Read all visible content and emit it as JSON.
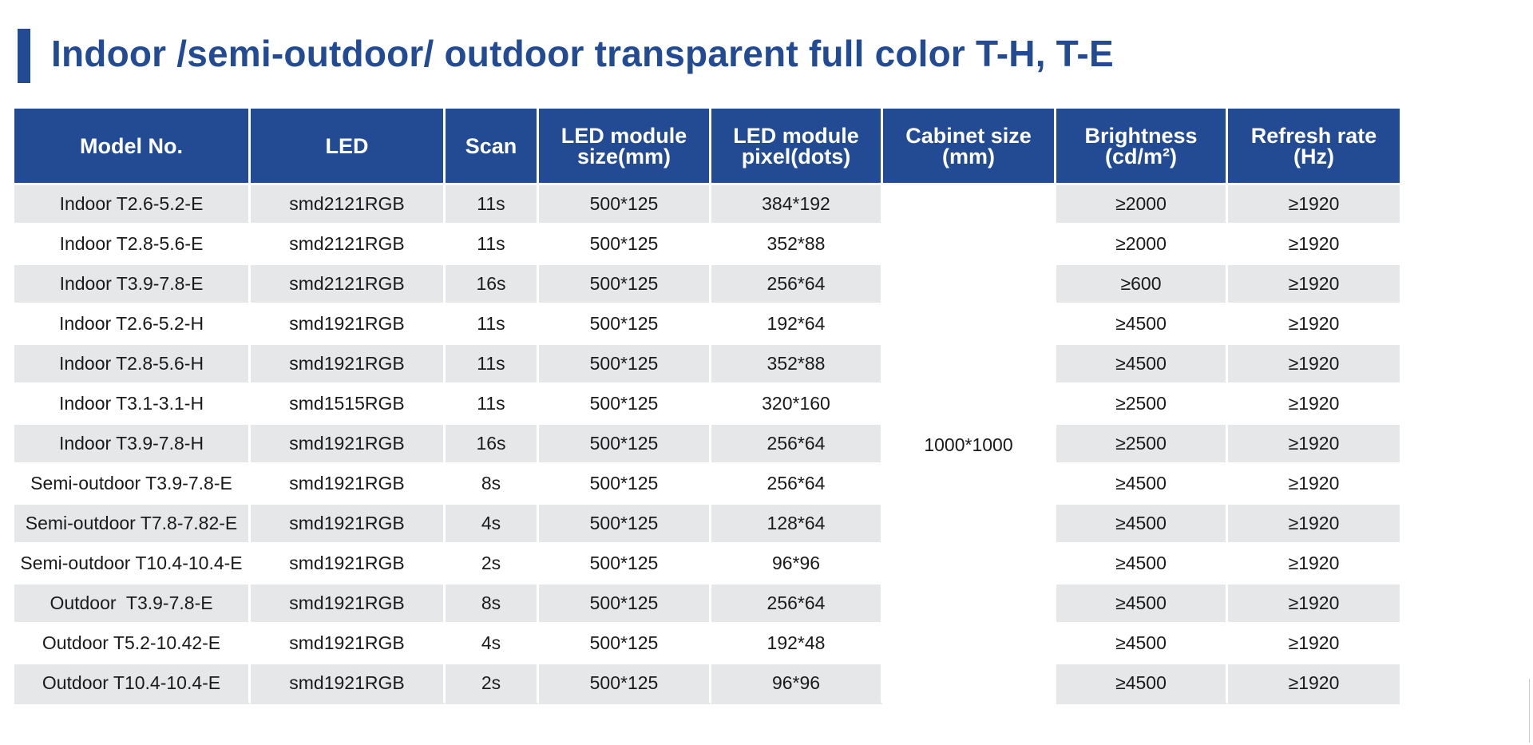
{
  "title": "Indoor /semi-outdoor/ outdoor transparent full color T-H, T-E",
  "table": {
    "headers": [
      [
        "Model No.",
        ""
      ],
      [
        "LED",
        ""
      ],
      [
        "Scan",
        ""
      ],
      [
        "LED module",
        "size(mm)"
      ],
      [
        "LED module",
        "pixel(dots)"
      ],
      [
        "Cabinet size",
        "(mm)"
      ],
      [
        "Brightness",
        "(cd/m²)"
      ],
      [
        "Refresh rate",
        "(Hz)"
      ]
    ],
    "cabinet_size": "1000*1000",
    "rows": [
      {
        "model": "Indoor T2.6-5.2-E",
        "led": "smd2121RGB",
        "scan": "11s",
        "module_size": "500*125",
        "module_pixel": "384*192",
        "brightness": "≥2000",
        "refresh": "≥1920"
      },
      {
        "model": "Indoor T2.8-5.6-E",
        "led": "smd2121RGB",
        "scan": "11s",
        "module_size": "500*125",
        "module_pixel": "352*88",
        "brightness": "≥2000",
        "refresh": "≥1920"
      },
      {
        "model": "Indoor T3.9-7.8-E",
        "led": "smd2121RGB",
        "scan": "16s",
        "module_size": "500*125",
        "module_pixel": "256*64",
        "brightness": "≥600",
        "refresh": "≥1920"
      },
      {
        "model": "Indoor T2.6-5.2-H",
        "led": "smd1921RGB",
        "scan": "11s",
        "module_size": "500*125",
        "module_pixel": "192*64",
        "brightness": "≥4500",
        "refresh": "≥1920"
      },
      {
        "model": "Indoor T2.8-5.6-H",
        "led": "smd1921RGB",
        "scan": "11s",
        "module_size": "500*125",
        "module_pixel": "352*88",
        "brightness": "≥4500",
        "refresh": "≥1920"
      },
      {
        "model": "Indoor T3.1-3.1-H",
        "led": "smd1515RGB",
        "scan": "11s",
        "module_size": "500*125",
        "module_pixel": "320*160",
        "brightness": "≥2500",
        "refresh": "≥1920"
      },
      {
        "model": "Indoor T3.9-7.8-H",
        "led": "smd1921RGB",
        "scan": "16s",
        "module_size": "500*125",
        "module_pixel": "256*64",
        "brightness": "≥2500",
        "refresh": "≥1920"
      },
      {
        "model": "Semi-outdoor T3.9-7.8-E",
        "led": "smd1921RGB",
        "scan": "8s",
        "module_size": "500*125",
        "module_pixel": "256*64",
        "brightness": "≥4500",
        "refresh": "≥1920"
      },
      {
        "model": "Semi-outdoor T7.8-7.82-E",
        "led": "smd1921RGB",
        "scan": "4s",
        "module_size": "500*125",
        "module_pixel": "128*64",
        "brightness": "≥4500",
        "refresh": "≥1920"
      },
      {
        "model": "Semi-outdoor T10.4-10.4-E",
        "led": "smd1921RGB",
        "scan": "2s",
        "module_size": "500*125",
        "module_pixel": "96*96",
        "brightness": "≥4500",
        "refresh": "≥1920"
      },
      {
        "model": "Outdoor  T3.9-7.8-E",
        "led": "smd1921RGB",
        "scan": "8s",
        "module_size": "500*125",
        "module_pixel": "256*64",
        "brightness": "≥4500",
        "refresh": "≥1920"
      },
      {
        "model": "Outdoor T5.2-10.42-E",
        "led": "smd1921RGB",
        "scan": "4s",
        "module_size": "500*125",
        "module_pixel": "192*48",
        "brightness": "≥4500",
        "refresh": "≥1920"
      },
      {
        "model": "Outdoor T10.4-10.4-E",
        "led": "smd1921RGB",
        "scan": "2s",
        "module_size": "500*125",
        "module_pixel": "96*96",
        "brightness": "≥4500",
        "refresh": "≥1920"
      }
    ]
  },
  "colors": {
    "header_bg": "#234b94",
    "title": "#234b94",
    "stripe": "#e6e7e9"
  }
}
